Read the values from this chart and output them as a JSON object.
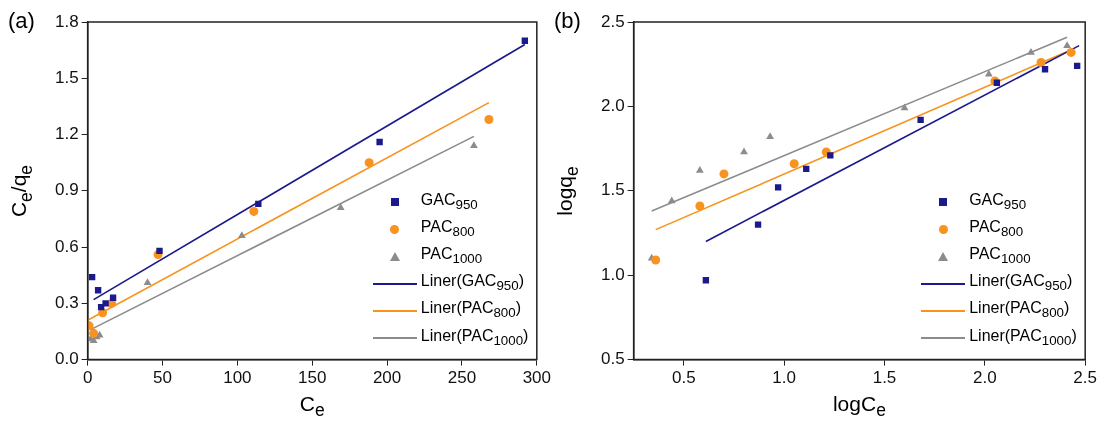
{
  "chart_data": [
    {
      "type": "scatter",
      "title": "(a)",
      "xlabel": "C$_{e}$",
      "ylabel": "C$_{e}$/q$_{e}$",
      "xlim": [
        0,
        300
      ],
      "ylim": [
        0,
        1.8
      ],
      "xticks": [
        0,
        50,
        100,
        150,
        200,
        250,
        300
      ],
      "yticks": [
        {
          "value": 0,
          "label": "0.0"
        },
        0.3,
        0.6,
        0.9,
        1.2,
        1.5,
        1.8
      ],
      "grid": false,
      "legend": "bottom right",
      "series": [
        {
          "name": "GAC$_{950}$",
          "marker": "square",
          "color": "#1a1a8c",
          "x": [
            3,
            7,
            9,
            12,
            17,
            48,
            114,
            195,
            292
          ],
          "values": [
            0.44,
            0.37,
            0.28,
            0.3,
            0.33,
            0.58,
            0.83,
            1.16,
            1.7
          ]
        },
        {
          "name": "PAC$_{800}$",
          "marker": "circle",
          "color": "#f7931e",
          "x": [
            1,
            4,
            10,
            16,
            47,
            111,
            188,
            268
          ],
          "values": [
            0.18,
            0.14,
            0.25,
            0.3,
            0.56,
            0.79,
            1.05,
            1.28
          ]
        },
        {
          "name": "PAC$_{1000}$",
          "marker": "triangle",
          "color": "#8c8c8c",
          "x": [
            2,
            4,
            6,
            8,
            40,
            103,
            169,
            258
          ],
          "values": [
            0.11,
            0.1,
            0.12,
            0.13,
            0.41,
            0.66,
            0.81,
            1.14
          ]
        },
        {
          "name": "Liner(GAC$_{950}$)",
          "type": "line",
          "color": "#1a1a8c",
          "x": [
            4,
            292
          ],
          "values": [
            0.32,
            1.68
          ]
        },
        {
          "name": "Liner(PAC$_{800}$)",
          "type": "line",
          "color": "#f7931e",
          "x": [
            0,
            268
          ],
          "values": [
            0.21,
            1.37
          ]
        },
        {
          "name": "Liner(PAC$_{1000}$)",
          "type": "line",
          "color": "#8c8c8c",
          "x": [
            2,
            258
          ],
          "values": [
            0.16,
            1.19
          ]
        }
      ]
    },
    {
      "type": "scatter",
      "title": "(b)",
      "xlabel": "logC$_{e}$",
      "ylabel": "logq$_{e}$",
      "xlim": [
        0.25,
        2.5
      ],
      "ylim": [
        0.5,
        2.5
      ],
      "xticks": [
        0.5,
        {
          "value": 1,
          "label": "1.0"
        },
        1.5,
        {
          "value": 2,
          "label": "2.0"
        },
        2.5
      ],
      "yticks": [
        0.5,
        {
          "value": 1,
          "label": "1.0"
        },
        1.5,
        {
          "value": 2,
          "label": "2.0"
        },
        2.5
      ],
      "grid": false,
      "legend": "bottom right",
      "series": [
        {
          "name": "GAC$_{950}$",
          "marker": "square",
          "color": "#1a1a8c",
          "x": [
            0.61,
            0.87,
            0.97,
            1.11,
            1.23,
            1.68,
            2.06,
            2.3,
            2.46
          ],
          "values": [
            0.97,
            1.3,
            1.52,
            1.63,
            1.71,
            1.92,
            2.14,
            2.22,
            2.24
          ]
        },
        {
          "name": "PAC$_{800}$",
          "marker": "circle",
          "color": "#f7931e",
          "x": [
            0.36,
            0.58,
            0.7,
            1.05,
            1.21,
            2.05,
            2.28,
            2.43
          ],
          "values": [
            1.09,
            1.41,
            1.6,
            1.66,
            1.73,
            2.15,
            2.26,
            2.32
          ]
        },
        {
          "name": "PAC$_{1000}$",
          "marker": "triangle",
          "color": "#8c8c8c",
          "x": [
            0.34,
            0.44,
            0.58,
            0.8,
            0.93,
            1.6,
            2.02,
            2.23,
            2.41
          ],
          "values": [
            1.1,
            1.44,
            1.62,
            1.73,
            1.82,
            1.99,
            2.19,
            2.32,
            2.36
          ]
        },
        {
          "name": "Liner(GAC$_{950}$)",
          "type": "line",
          "color": "#1a1a8c",
          "x": [
            0.61,
            2.47
          ],
          "values": [
            1.2,
            2.36
          ]
        },
        {
          "name": "Liner(PAC$_{800}$)",
          "type": "line",
          "color": "#f7931e",
          "x": [
            0.36,
            2.44
          ],
          "values": [
            1.27,
            2.34
          ]
        },
        {
          "name": "Liner(PAC$_{1000}$)",
          "type": "line",
          "color": "#8c8c8c",
          "x": [
            0.34,
            2.41
          ],
          "values": [
            1.38,
            2.41
          ]
        }
      ]
    }
  ]
}
